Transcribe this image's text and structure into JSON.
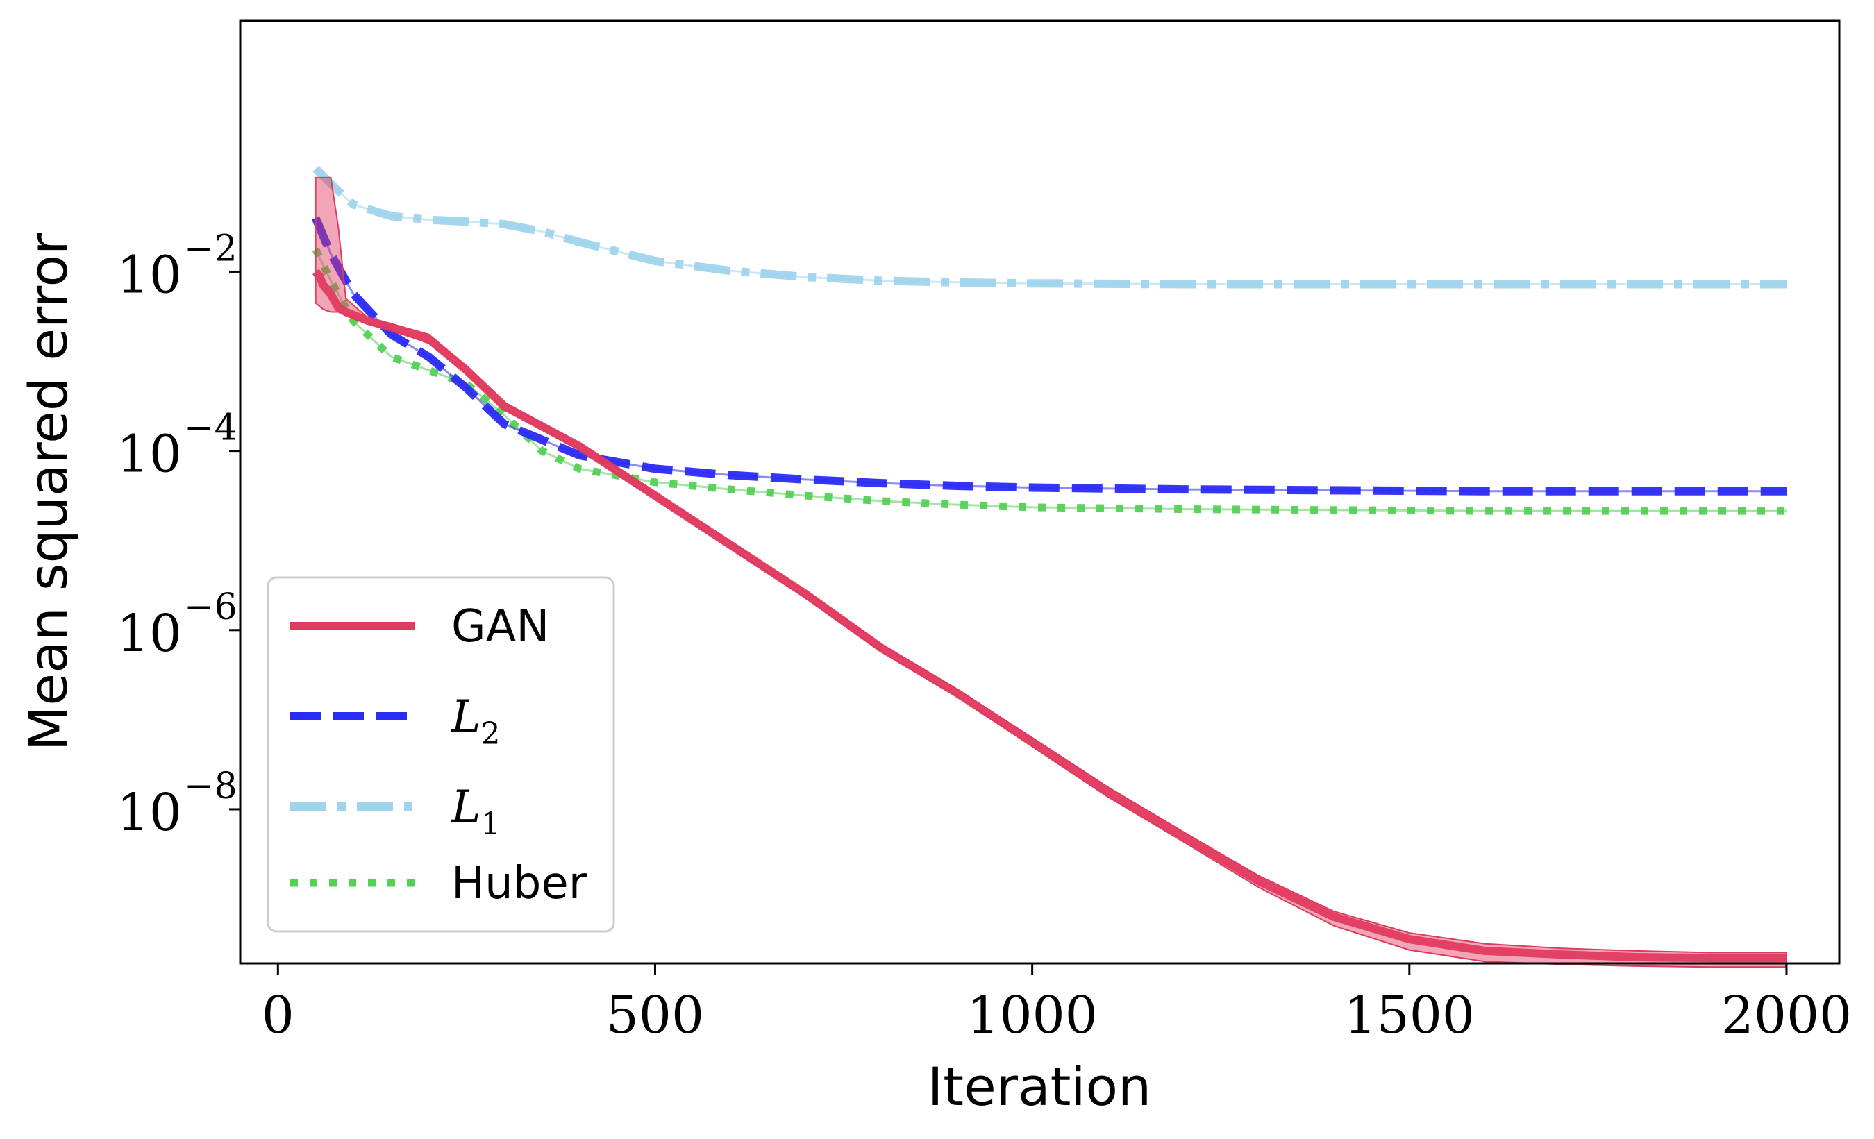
{
  "chart_data": {
    "type": "line",
    "title": "",
    "xlabel": "Iteration",
    "ylabel": "Mean squared error",
    "xlim": [
      -50,
      2070
    ],
    "ylog10lim": [
      -9.72,
      0.8
    ],
    "xticks": [
      0,
      500,
      1000,
      1500,
      2000
    ],
    "yticks_exp": [
      -2,
      -4,
      -6,
      -8
    ],
    "legend_position": "lower-left",
    "series": [
      {
        "name": "GAN",
        "math": false,
        "style": "solid",
        "color": "#e03a5f",
        "band": true,
        "points": [
          [
            50,
            -2.0
          ],
          [
            55,
            -2.05
          ],
          [
            60,
            -2.15
          ],
          [
            70,
            -2.25
          ],
          [
            80,
            -2.4
          ],
          [
            90,
            -2.45
          ],
          [
            120,
            -2.55
          ],
          [
            150,
            -2.62
          ],
          [
            200,
            -2.75
          ],
          [
            250,
            -3.1
          ],
          [
            300,
            -3.5
          ],
          [
            400,
            -3.95
          ],
          [
            500,
            -4.5
          ],
          [
            600,
            -5.05
          ],
          [
            700,
            -5.6
          ],
          [
            800,
            -6.2
          ],
          [
            900,
            -6.7
          ],
          [
            1000,
            -7.25
          ],
          [
            1100,
            -7.8
          ],
          [
            1200,
            -8.3
          ],
          [
            1300,
            -8.8
          ],
          [
            1400,
            -9.2
          ],
          [
            1500,
            -9.45
          ],
          [
            1600,
            -9.58
          ],
          [
            1700,
            -9.62
          ],
          [
            1800,
            -9.65
          ],
          [
            1900,
            -9.66
          ],
          [
            2000,
            -9.66
          ]
        ],
        "band_lower": [
          [
            50,
            -2.35
          ],
          [
            60,
            -2.42
          ],
          [
            70,
            -2.45
          ],
          [
            80,
            -2.45
          ],
          [
            90,
            -2.48
          ],
          [
            120,
            -2.58
          ],
          [
            150,
            -2.65
          ],
          [
            200,
            -2.8
          ],
          [
            250,
            -3.12
          ],
          [
            300,
            -3.53
          ],
          [
            400,
            -3.98
          ],
          [
            500,
            -4.53
          ],
          [
            600,
            -5.08
          ],
          [
            700,
            -5.64
          ],
          [
            800,
            -6.24
          ],
          [
            900,
            -6.74
          ],
          [
            1000,
            -7.3
          ],
          [
            1100,
            -7.86
          ],
          [
            1200,
            -8.36
          ],
          [
            1300,
            -8.87
          ],
          [
            1400,
            -9.3
          ],
          [
            1500,
            -9.57
          ],
          [
            1600,
            -9.7
          ],
          [
            1700,
            -9.73
          ],
          [
            1800,
            -9.75
          ],
          [
            1900,
            -9.76
          ],
          [
            2000,
            -9.76
          ]
        ],
        "band_upper": [
          [
            50,
            -0.95
          ],
          [
            60,
            -0.95
          ],
          [
            70,
            -0.95
          ],
          [
            80,
            -1.5
          ],
          [
            90,
            -2.3
          ],
          [
            120,
            -2.52
          ],
          [
            150,
            -2.58
          ],
          [
            200,
            -2.7
          ],
          [
            250,
            -3.07
          ],
          [
            300,
            -3.47
          ],
          [
            400,
            -3.92
          ],
          [
            500,
            -4.47
          ],
          [
            600,
            -5.02
          ],
          [
            700,
            -5.57
          ],
          [
            800,
            -6.16
          ],
          [
            900,
            -6.66
          ],
          [
            1000,
            -7.2
          ],
          [
            1100,
            -7.75
          ],
          [
            1200,
            -8.25
          ],
          [
            1300,
            -8.74
          ],
          [
            1400,
            -9.14
          ],
          [
            1500,
            -9.38
          ],
          [
            1600,
            -9.5
          ],
          [
            1700,
            -9.55
          ],
          [
            1800,
            -9.58
          ],
          [
            1900,
            -9.6
          ],
          [
            2000,
            -9.6
          ]
        ]
      },
      {
        "name": "L",
        "sub": "2",
        "math": true,
        "style": "dashed",
        "color": "#2a2af5",
        "points": [
          [
            50,
            -1.4
          ],
          [
            70,
            -1.8
          ],
          [
            100,
            -2.25
          ],
          [
            150,
            -2.7
          ],
          [
            200,
            -2.95
          ],
          [
            250,
            -3.3
          ],
          [
            300,
            -3.7
          ],
          [
            400,
            -4.05
          ],
          [
            500,
            -4.2
          ],
          [
            600,
            -4.27
          ],
          [
            700,
            -4.32
          ],
          [
            800,
            -4.36
          ],
          [
            900,
            -4.39
          ],
          [
            1000,
            -4.41
          ],
          [
            1200,
            -4.43
          ],
          [
            1400,
            -4.44
          ],
          [
            1600,
            -4.45
          ],
          [
            1800,
            -4.45
          ],
          [
            2000,
            -4.45
          ]
        ]
      },
      {
        "name": "L",
        "sub": "1",
        "math": true,
        "style": "dashdot",
        "color": "#9fd4ec",
        "points": [
          [
            50,
            -0.85
          ],
          [
            80,
            -1.1
          ],
          [
            100,
            -1.25
          ],
          [
            150,
            -1.38
          ],
          [
            200,
            -1.42
          ],
          [
            250,
            -1.44
          ],
          [
            300,
            -1.47
          ],
          [
            350,
            -1.55
          ],
          [
            400,
            -1.67
          ],
          [
            500,
            -1.88
          ],
          [
            600,
            -1.99
          ],
          [
            700,
            -2.06
          ],
          [
            800,
            -2.1
          ],
          [
            900,
            -2.12
          ],
          [
            1000,
            -2.13
          ],
          [
            1200,
            -2.14
          ],
          [
            1400,
            -2.14
          ],
          [
            1600,
            -2.14
          ],
          [
            2000,
            -2.14
          ]
        ]
      },
      {
        "name": "Huber",
        "math": false,
        "style": "dotted",
        "color": "#55d055",
        "points": [
          [
            50,
            -1.75
          ],
          [
            70,
            -2.1
          ],
          [
            100,
            -2.55
          ],
          [
            150,
            -2.95
          ],
          [
            200,
            -3.1
          ],
          [
            250,
            -3.25
          ],
          [
            300,
            -3.6
          ],
          [
            350,
            -4.0
          ],
          [
            400,
            -4.2
          ],
          [
            500,
            -4.35
          ],
          [
            600,
            -4.43
          ],
          [
            700,
            -4.5
          ],
          [
            800,
            -4.56
          ],
          [
            900,
            -4.6
          ],
          [
            1000,
            -4.63
          ],
          [
            1200,
            -4.65
          ],
          [
            1400,
            -4.66
          ],
          [
            1600,
            -4.67
          ],
          [
            1800,
            -4.67
          ],
          [
            2000,
            -4.67
          ]
        ]
      }
    ]
  }
}
